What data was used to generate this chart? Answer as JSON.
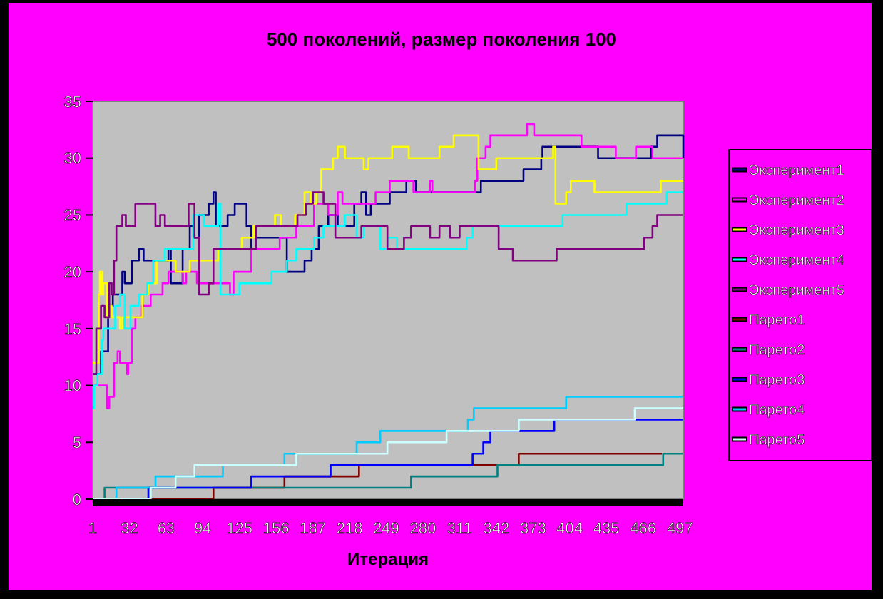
{
  "chart_data": {
    "type": "step",
    "title": "500 поколений, размер поколения 100",
    "xlabel": "Итерация",
    "xlim": [
      1,
      500
    ],
    "xticks": [
      1,
      32,
      63,
      94,
      125,
      156,
      187,
      218,
      249,
      280,
      311,
      342,
      373,
      404,
      435,
      466,
      497
    ],
    "ylim": [
      0,
      35
    ],
    "yticks": [
      0,
      5,
      10,
      15,
      20,
      25,
      30,
      35
    ],
    "legend": "right",
    "grid": false,
    "series": [
      {
        "name": "Эксперимент1",
        "color": "#000080",
        "x": [
          1,
          8,
          14,
          18,
          26,
          28,
          34,
          40,
          44,
          65,
          67,
          77,
          83,
          87,
          91,
          99,
          103,
          105,
          115,
          121,
          131,
          135,
          139,
          165,
          180,
          186,
          192,
          200,
          208,
          222,
          228,
          232,
          236,
          252,
          266,
          274,
          329,
          365,
          380,
          381,
          428,
          461,
          473,
          478,
          500
        ],
        "values": [
          11,
          13,
          17,
          18,
          20,
          19,
          21,
          22,
          21,
          22,
          19,
          22,
          24,
          23,
          25,
          26,
          27,
          24,
          25,
          26,
          24,
          22,
          23,
          20,
          21,
          22,
          24,
          25,
          24,
          26,
          27,
          25,
          26,
          27,
          28,
          27,
          28,
          29,
          30,
          31,
          30,
          30,
          31,
          32,
          30
        ]
      },
      {
        "name": "Эксперимент2",
        "color": "#ff00ff",
        "x": [
          1,
          13,
          15,
          19,
          22,
          24,
          30,
          31,
          34,
          37,
          42,
          50,
          60,
          65,
          77,
          80,
          89,
          117,
          120,
          135,
          159,
          173,
          188,
          200,
          208,
          212,
          240,
          252,
          272,
          286,
          288,
          324,
          326,
          333,
          337,
          368,
          374,
          414,
          443,
          460,
          474,
          500
        ],
        "values": [
          10,
          8,
          9,
          12,
          13,
          12,
          11,
          12,
          15,
          16,
          17,
          18,
          19,
          20,
          19,
          20,
          19,
          18,
          20,
          22,
          23,
          24,
          26,
          25,
          27,
          26,
          27,
          28,
          27,
          28,
          27,
          28,
          30,
          31,
          32,
          33,
          32,
          31,
          30,
          31,
          30,
          30
        ]
      },
      {
        "name": "Эксперимент3",
        "color": "#ffff00",
        "x": [
          1,
          6,
          7,
          9,
          10,
          13,
          15,
          17,
          24,
          26,
          43,
          48,
          55,
          71,
          83,
          107,
          127,
          137,
          155,
          160,
          172,
          180,
          185,
          190,
          194,
          204,
          208,
          214,
          230,
          234,
          254,
          268,
          294,
          306,
          327,
          342,
          390,
          392,
          401,
          405,
          425,
          481,
          500
        ],
        "values": [
          12,
          18,
          20,
          18,
          19,
          16,
          17,
          16,
          15,
          16,
          18,
          19,
          21,
          20,
          21,
          22,
          23,
          24,
          25,
          24,
          25,
          27,
          26,
          27,
          29,
          30,
          31,
          30,
          29,
          30,
          31,
          30,
          31,
          32,
          29,
          30,
          31,
          26,
          27,
          28,
          27,
          28,
          28
        ]
      },
      {
        "name": "Эксперимент4",
        "color": "#00ffff",
        "x": [
          1,
          2,
          5,
          9,
          10,
          20,
          24,
          28,
          33,
          40,
          47,
          52,
          62,
          86,
          95,
          107,
          109,
          125,
          152,
          165,
          173,
          188,
          196,
          214,
          224,
          230,
          244,
          250,
          258,
          317,
          322,
          398,
          452,
          486,
          500
        ],
        "values": [
          8,
          10,
          11,
          14,
          15,
          17,
          18,
          15,
          17,
          18,
          19,
          21,
          22,
          25,
          24,
          26,
          18,
          19,
          20,
          21,
          22,
          23,
          24,
          25,
          23,
          24,
          22,
          23,
          22,
          23,
          24,
          25,
          26,
          27,
          27
        ]
      },
      {
        "name": "Эксперимент5",
        "color": "#800080",
        "x": [
          1,
          4,
          8,
          11,
          15,
          17,
          19,
          21,
          26,
          29,
          37,
          54,
          58,
          62,
          82,
          87,
          91,
          99,
          103,
          139,
          174,
          181,
          187,
          196,
          206,
          228,
          250,
          264,
          270,
          286,
          294,
          303,
          311,
          343,
          344,
          356,
          393,
          467,
          474,
          478,
          500
        ],
        "values": [
          11,
          15,
          17,
          16,
          19,
          18,
          21,
          24,
          25,
          24,
          26,
          24,
          25,
          24,
          26,
          23,
          18,
          19,
          22,
          24,
          25,
          26,
          27,
          26,
          23,
          24,
          22,
          23,
          24,
          23,
          24,
          23,
          24,
          24,
          22,
          21,
          22,
          23,
          24,
          25,
          25
        ]
      },
      {
        "name": "Парето1",
        "color": "#800000",
        "x": [
          1,
          103,
          163,
          226,
          361,
          482
        ],
        "values": [
          0,
          1,
          2,
          3,
          4,
          4
        ]
      },
      {
        "name": "Парето2",
        "color": "#008080",
        "x": [
          1,
          11,
          270,
          343,
          483,
          500
        ],
        "values": [
          0,
          1,
          2,
          3,
          4,
          4
        ]
      },
      {
        "name": "Парето3",
        "color": "#0000ff",
        "x": [
          1,
          48,
          135,
          202,
          322,
          331,
          337,
          391,
          500
        ],
        "values": [
          0,
          1,
          2,
          3,
          4,
          5,
          6,
          7,
          7
        ]
      },
      {
        "name": "Парето4",
        "color": "#00ccff",
        "x": [
          1,
          21,
          54,
          111,
          163,
          224,
          244,
          318,
          323,
          401,
          500
        ],
        "values": [
          0,
          1,
          2,
          3,
          4,
          5,
          6,
          7,
          8,
          9,
          9
        ]
      },
      {
        "name": "Парето5",
        "color": "#ccffff",
        "x": [
          1,
          50,
          71,
          87,
          173,
          250,
          300,
          361,
          459,
          500
        ],
        "values": [
          0,
          1,
          2,
          3,
          4,
          5,
          6,
          7,
          8,
          8
        ]
      }
    ]
  }
}
